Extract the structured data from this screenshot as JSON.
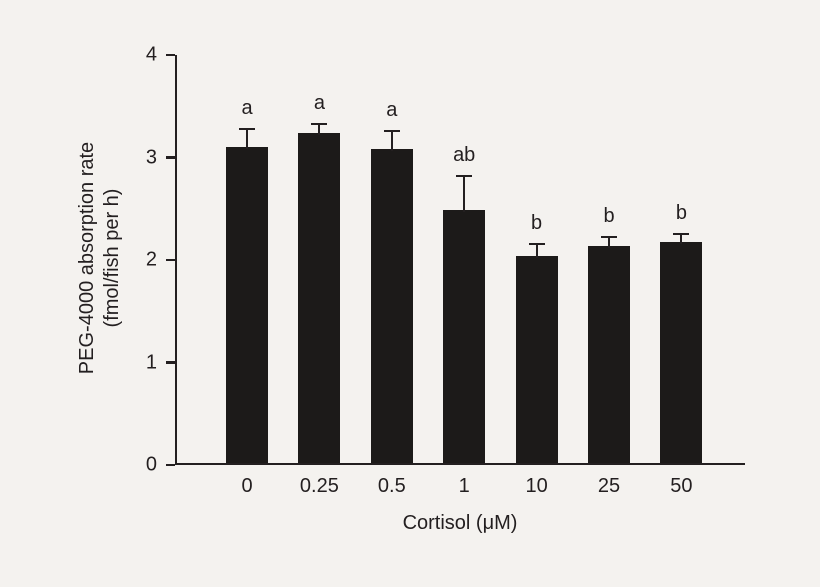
{
  "chart_data": {
    "type": "bar",
    "title": "",
    "xlabel": "Cortisol (μM)",
    "ylabel_line1": "PEG-4000 absorption rate",
    "ylabel_line2": "(fmol/fish per h)",
    "categories": [
      "0",
      "0.25",
      "0.5",
      "1",
      "10",
      "25",
      "50"
    ],
    "values": [
      3.08,
      3.22,
      3.06,
      2.47,
      2.02,
      2.12,
      2.16
    ],
    "errors": [
      0.2,
      0.11,
      0.2,
      0.35,
      0.14,
      0.1,
      0.09
    ],
    "sig_letters": [
      "a",
      "a",
      "a",
      "ab",
      "b",
      "b",
      "b"
    ],
    "ylim": [
      0,
      4
    ],
    "yticks": [
      0,
      1,
      2,
      3,
      4
    ],
    "bar_color": "#1c1a19",
    "axis_color": "#231f20",
    "background": "#f4f2ef",
    "legend": "none",
    "grid": false
  }
}
